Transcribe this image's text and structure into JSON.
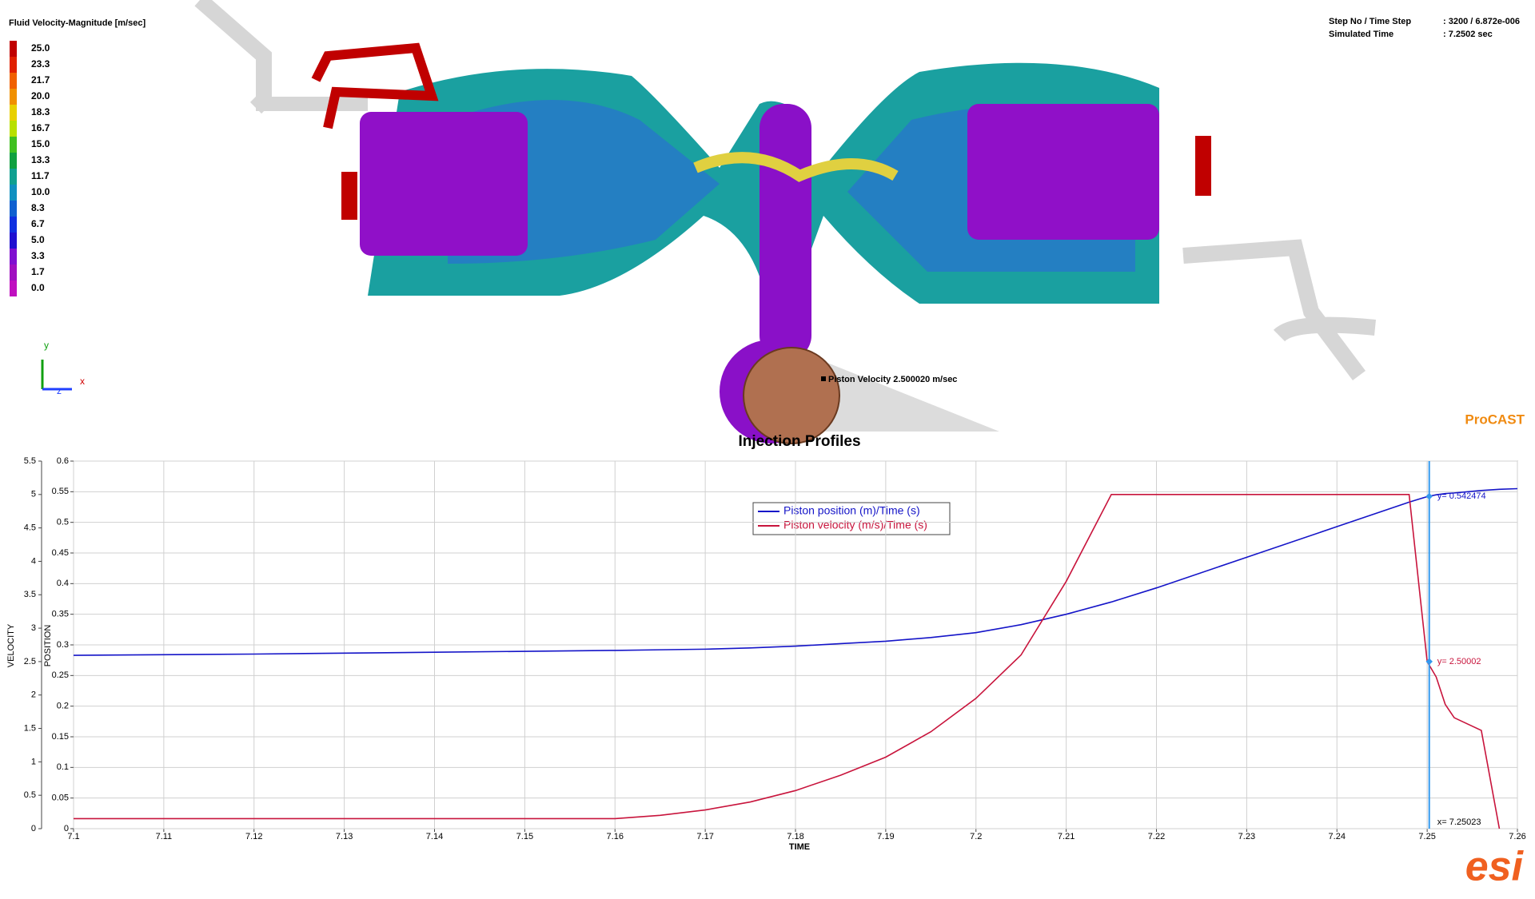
{
  "viewer": {
    "result_title": "Fluid Velocity-Magnitude [m/sec]",
    "colorbar_labels": [
      "25.0",
      "23.3",
      "21.7",
      "20.0",
      "18.3",
      "16.7",
      "15.0",
      "13.3",
      "11.7",
      "10.0",
      "8.3",
      "6.7",
      "5.0",
      "3.3",
      "1.7",
      "0.0"
    ],
    "colorbar_colors": [
      "#c00000",
      "#e02000",
      "#f06000",
      "#f09000",
      "#e8d000",
      "#b8e000",
      "#40c020",
      "#10a040",
      "#10a090",
      "#1090c0",
      "#1060d0",
      "#1030e0",
      "#2010d0",
      "#8010d0",
      "#a010c0",
      "#c010c0"
    ],
    "step_label": "Step No / Time Step",
    "step_value": ": 3200 / 6.872e-006",
    "time_label": "Simulated Time",
    "time_value": ": 7.2502 sec",
    "triad": [
      "y",
      "x",
      "z"
    ],
    "probe_label": "Piston  Velocity  2.500020  m/sec",
    "brand": "ProCAST",
    "logo": "esi"
  },
  "chart_data": {
    "type": "line",
    "title": "Injection Profiles",
    "x_label": "TIME",
    "y_label": "VELOCITY",
    "y2_label": "POSITION",
    "xlim": [
      7.1,
      7.26
    ],
    "xticks": [
      7.1,
      7.11,
      7.12,
      7.13,
      7.14,
      7.15,
      7.16,
      7.17,
      7.18,
      7.19,
      7.2,
      7.21,
      7.22,
      7.23,
      7.24,
      7.25,
      7.26
    ],
    "ylim": [
      0,
      5.5
    ],
    "yticks": [
      0,
      0.5,
      1,
      1.5,
      2,
      2.5,
      3,
      3.5,
      4,
      4.5,
      5,
      5.5
    ],
    "y2lim": [
      0,
      0.6
    ],
    "y2ticks": [
      0,
      0.05,
      0.1,
      0.15,
      0.2,
      0.25,
      0.3,
      0.35,
      0.4,
      0.45,
      0.5,
      0.55,
      0.6
    ],
    "grid": true,
    "x": [
      7.1,
      7.12,
      7.14,
      7.16,
      7.165,
      7.17,
      7.175,
      7.18,
      7.185,
      7.19,
      7.195,
      7.2,
      7.205,
      7.21,
      7.215,
      7.22,
      7.23,
      7.24,
      7.248,
      7.25,
      7.251,
      7.252,
      7.253,
      7.256,
      7.258,
      7.26
    ],
    "series": [
      {
        "name": "Piston position (m)/Time (s)",
        "color": "#1414c8",
        "axis": "y2",
        "values": [
          0.283,
          0.285,
          0.288,
          0.291,
          0.292,
          0.293,
          0.295,
          0.298,
          0.302,
          0.306,
          0.312,
          0.32,
          0.333,
          0.35,
          0.37,
          0.393,
          0.443,
          0.493,
          0.533,
          0.542,
          0.545,
          0.547,
          0.548,
          0.552,
          0.554,
          0.555
        ]
      },
      {
        "name": "Piston velocity (m/s)/Time (s)",
        "color": "#c8143c",
        "axis": "y",
        "values": [
          0.15,
          0.15,
          0.15,
          0.15,
          0.2,
          0.28,
          0.4,
          0.57,
          0.8,
          1.07,
          1.45,
          1.95,
          2.6,
          3.7,
          5.0,
          5.0,
          5.0,
          5.0,
          5.0,
          2.5,
          2.27,
          1.86,
          1.66,
          1.47,
          0,
          null
        ]
      }
    ],
    "cursor": {
      "x": 7.25023,
      "label": "x= 7.25023",
      "color": "#3399ee"
    },
    "cursor_values": [
      {
        "value": 0.542474,
        "label": "y= 0.542474",
        "axis": "y2"
      },
      {
        "value": 2.50002,
        "label": "y= 2.50002",
        "axis": "y"
      }
    ]
  }
}
